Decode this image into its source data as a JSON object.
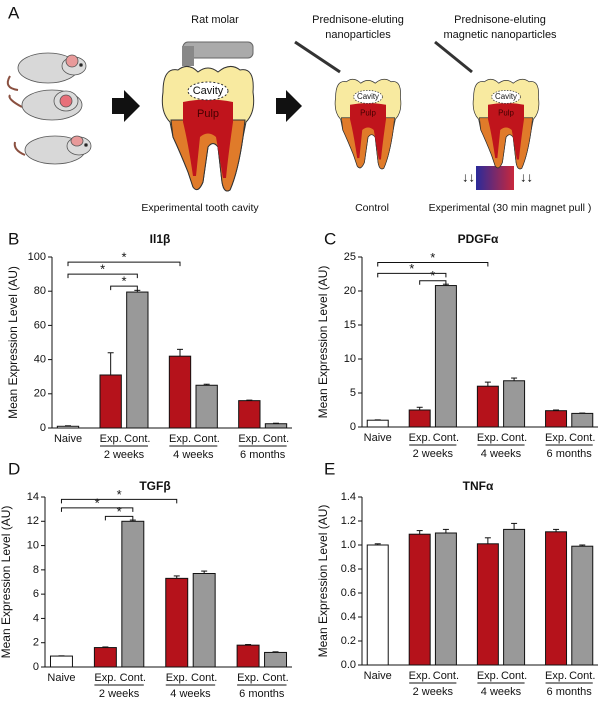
{
  "panel_a": {
    "label": "A",
    "steps": [
      {
        "title": [
          "Rat molar"
        ],
        "cavity": "Cavity",
        "pulp": "Pulp",
        "caption": "Experimental tooth cavity"
      },
      {
        "title": [
          "Prednisone-eluting",
          "nanoparticles"
        ],
        "cavity": "Cavity",
        "pulp": "Pulp",
        "caption": "Control"
      },
      {
        "title": [
          "Prednisone-eluting",
          "magnetic nanoparticles"
        ],
        "cavity": "Cavity",
        "pulp": "Pulp",
        "caption": "Experimental (30 min magnet pull )"
      }
    ]
  },
  "chart_data": [
    {
      "type": "bar",
      "panel": "B",
      "title": "Il1β",
      "y_label": "Mean Expression Level (AU)",
      "categories": [
        "Naive",
        "Exp.",
        "Cont.",
        "Exp.",
        "Cont.",
        "Exp.",
        "Cont."
      ],
      "groups": [
        "2 weeks",
        "4 weeks",
        "6 months"
      ],
      "values": [
        1,
        31,
        79.5,
        42,
        25,
        16,
        2.5
      ],
      "errors": [
        0.3,
        13,
        1,
        4,
        0.6,
        0.3,
        0.3
      ],
      "colors": [
        "#ffffff",
        "#b5121b",
        "#999999",
        "#b5121b",
        "#999999",
        "#b5121b",
        "#999999"
      ],
      "ylim": [
        0,
        100
      ],
      "yticks": [
        0,
        20,
        40,
        60,
        80,
        100
      ],
      "significance": [
        {
          "from": 0,
          "to": 3,
          "y": 97,
          "label": "*"
        },
        {
          "from": 0,
          "to": 2,
          "y": 90,
          "label": "*"
        },
        {
          "from": 1,
          "to": 2,
          "y": 83,
          "label": "*"
        }
      ]
    },
    {
      "type": "bar",
      "panel": "C",
      "title": "PDGFα",
      "y_label": "Mean Expression Level (AU)",
      "categories": [
        "Naive",
        "Exp.",
        "Cont.",
        "Exp.",
        "Cont.",
        "Exp.",
        "Cont."
      ],
      "groups": [
        "2 weeks",
        "4 weeks",
        "6 months"
      ],
      "values": [
        1,
        2.5,
        20.8,
        6,
        6.8,
        2.4,
        2
      ],
      "errors": [
        0.05,
        0.4,
        0.2,
        0.6,
        0.4,
        0.1,
        0.05
      ],
      "colors": [
        "#ffffff",
        "#b5121b",
        "#999999",
        "#b5121b",
        "#999999",
        "#b5121b",
        "#999999"
      ],
      "ylim": [
        0,
        25
      ],
      "yticks": [
        0,
        5,
        10,
        15,
        20,
        25
      ],
      "significance": [
        {
          "from": 0,
          "to": 3,
          "y": 24.2,
          "label": "*"
        },
        {
          "from": 0,
          "to": 2,
          "y": 22.6,
          "label": "*"
        },
        {
          "from": 1,
          "to": 2,
          "y": 21.5,
          "label": "*"
        }
      ]
    },
    {
      "type": "bar",
      "panel": "D",
      "title": "TGFβ",
      "y_label": "Mean Expression Level (AU)",
      "categories": [
        "Naive",
        "Exp.",
        "Cont.",
        "Exp.",
        "Cont.",
        "Exp.",
        "Cont."
      ],
      "groups": [
        "2 weeks",
        "4 weeks",
        "6 months"
      ],
      "values": [
        0.9,
        1.6,
        12,
        7.3,
        7.7,
        1.8,
        1.2
      ],
      "errors": [
        0.02,
        0.05,
        0.1,
        0.2,
        0.2,
        0.05,
        0.05
      ],
      "colors": [
        "#ffffff",
        "#b5121b",
        "#999999",
        "#b5121b",
        "#999999",
        "#b5121b",
        "#999999"
      ],
      "ylim": [
        0,
        14
      ],
      "yticks": [
        0,
        2,
        4,
        6,
        8,
        10,
        12,
        14
      ],
      "significance": [
        {
          "from": 0,
          "to": 3,
          "y": 13.8,
          "label": "*"
        },
        {
          "from": 0,
          "to": 2,
          "y": 13.1,
          "label": "*"
        },
        {
          "from": 1,
          "to": 2,
          "y": 12.4,
          "label": "*"
        }
      ]
    },
    {
      "type": "bar",
      "panel": "E",
      "title": "TNFα",
      "y_label": "Mean Expression Level (AU)",
      "categories": [
        "Naive",
        "Exp.",
        "Cont.",
        "Exp.",
        "Cont.",
        "Exp.",
        "Cont."
      ],
      "groups": [
        "2 weeks",
        "4 weeks",
        "6 months"
      ],
      "values": [
        1.0,
        1.09,
        1.1,
        1.01,
        1.13,
        1.11,
        0.99
      ],
      "errors": [
        0.01,
        0.03,
        0.03,
        0.05,
        0.05,
        0.02,
        0.01
      ],
      "colors": [
        "#ffffff",
        "#b5121b",
        "#999999",
        "#b5121b",
        "#999999",
        "#b5121b",
        "#999999"
      ],
      "ylim": [
        0,
        1.4
      ],
      "yticks": [
        {
          "value": 0,
          "label": "0.0"
        },
        0.2,
        0.4,
        0.6,
        0.8,
        {
          "value": 1,
          "label": "1.0"
        },
        1.2,
        1.4
      ],
      "significance": []
    }
  ]
}
